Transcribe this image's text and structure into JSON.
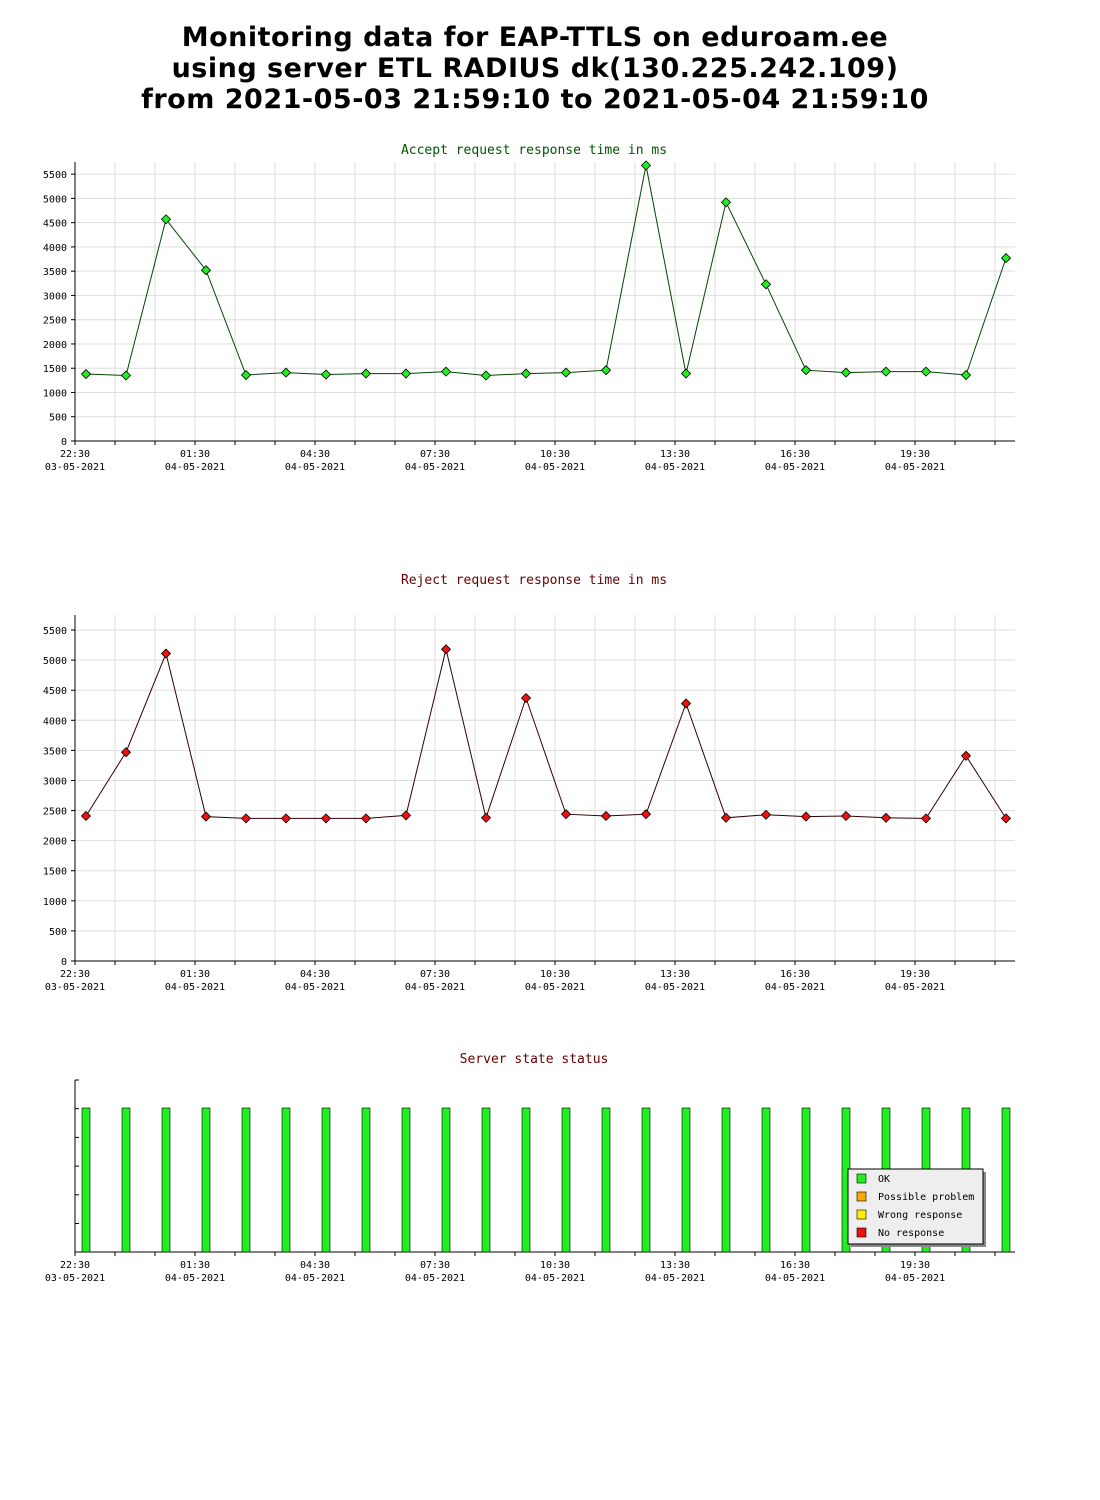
{
  "page": {
    "title_lines": [
      "Monitoring data for EAP-TTLS on eduroam.ee",
      "using server ETL RADIUS dk(130.225.242.109)",
      "from 2021-05-03 21:59:10 to 2021-05-04 21:59:10"
    ]
  },
  "x_axis": {
    "ticks": [
      {
        "time": "22:30",
        "date": "03-05-2021"
      },
      {
        "time": "01:30",
        "date": "04-05-2021"
      },
      {
        "time": "04:30",
        "date": "04-05-2021"
      },
      {
        "time": "07:30",
        "date": "04-05-2021"
      },
      {
        "time": "10:30",
        "date": "04-05-2021"
      },
      {
        "time": "13:30",
        "date": "04-05-2021"
      },
      {
        "time": "16:30",
        "date": "04-05-2021"
      },
      {
        "time": "19:30",
        "date": "04-05-2021"
      }
    ]
  },
  "colors": {
    "accept_line": "#004400",
    "accept_marker": "#22ee22",
    "accept_title": "#005500",
    "reject_line": "#330000",
    "reject_marker": "#ee1111",
    "reject_title": "#660000",
    "status_title": "#660000",
    "ok": "#22ee22",
    "possible_problem": "#ffaa00",
    "wrong_response": "#ffee00",
    "no_response": "#ee1111"
  },
  "chart_data": [
    {
      "type": "line",
      "title": "Accept request response time in ms",
      "y_ticks": [
        0,
        500,
        1000,
        1500,
        2000,
        2500,
        3000,
        3500,
        4000,
        4500,
        5000,
        5500
      ],
      "ylim": [
        0,
        5750
      ],
      "grid": true,
      "series": [
        {
          "values": [
            1380,
            1350,
            4570,
            3520,
            1360,
            1410,
            1370,
            1390,
            1390,
            1430,
            1350,
            1390,
            1410,
            1460,
            5680,
            1390,
            4920,
            3230,
            1460,
            1410,
            1430,
            1430,
            1360,
            3770
          ]
        }
      ]
    },
    {
      "type": "line",
      "title": "Reject request response time in ms",
      "y_ticks": [
        0,
        500,
        1000,
        1500,
        2000,
        2500,
        3000,
        3500,
        4000,
        4500,
        5000,
        5500
      ],
      "ylim": [
        0,
        5750
      ],
      "grid": true,
      "series": [
        {
          "values": [
            2410,
            3470,
            5110,
            2400,
            2370,
            2370,
            2370,
            2370,
            2420,
            5180,
            2380,
            4370,
            2440,
            2410,
            2440,
            4280,
            2380,
            2430,
            2400,
            2410,
            2380,
            2370,
            3410,
            2370
          ]
        }
      ]
    },
    {
      "type": "bar",
      "title": "Server state status",
      "states": [
        "OK",
        "OK",
        "OK",
        "OK",
        "OK",
        "OK",
        "OK",
        "OK",
        "OK",
        "OK",
        "OK",
        "OK",
        "OK",
        "OK",
        "OK",
        "OK",
        "OK",
        "OK",
        "OK",
        "OK",
        "OK",
        "OK",
        "OK",
        "OK"
      ],
      "legend_position": "bottom-right",
      "legend": [
        {
          "label": "OK",
          "color_key": "ok"
        },
        {
          "label": "Possible problem",
          "color_key": "possible_problem"
        },
        {
          "label": "Wrong response",
          "color_key": "wrong_response"
        },
        {
          "label": "No response",
          "color_key": "no_response"
        }
      ]
    }
  ]
}
